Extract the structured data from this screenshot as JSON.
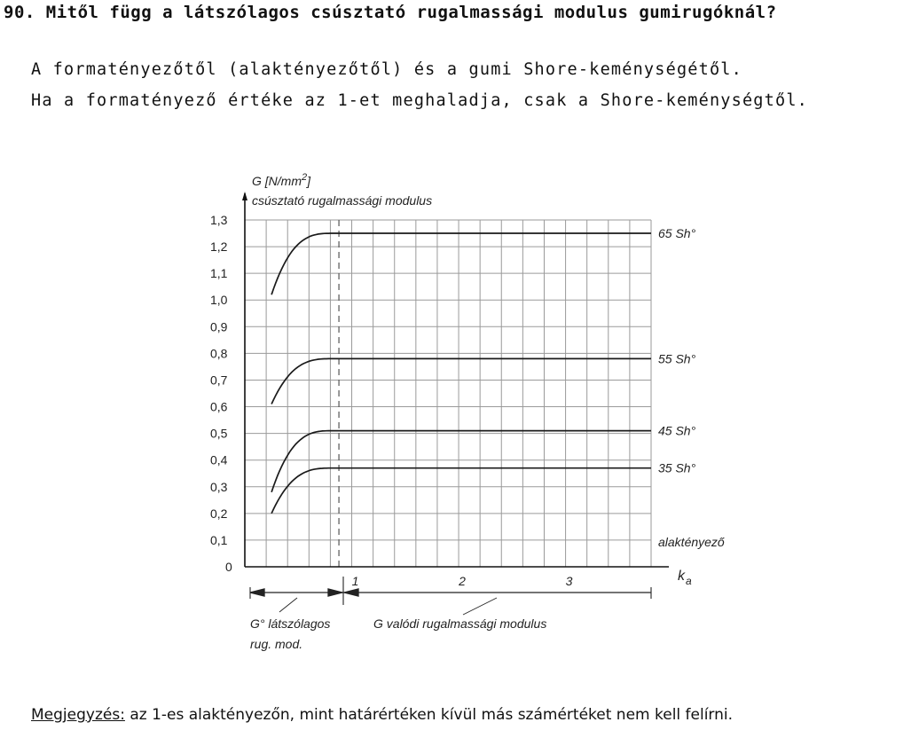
{
  "question": "90. Mitől függ a látszólagos csúsztató rugalmassági modulus gumirugóknál?",
  "answer": {
    "line1": "A formatényezőtől (alaktényezőtől) és a gumi Shore-keménységétől.",
    "line2": "Ha a formatényező értéke az 1-et meghaladja, csak a Shore-keménységtől."
  },
  "note": {
    "label": "Megjegyzés:",
    "text": " az 1-es alaktényezőn, mint határértéken kívül más számértéket nem kell felírni."
  },
  "chart_data": {
    "type": "line",
    "ylabel_unit": "G [N/mm",
    "ylabel_unit_sup": "2",
    "ylabel_unit_close": "]",
    "ylabel": "csúsztató rugalmassági modulus",
    "xlabel": "alaktényező",
    "xlabel_symbol": "k",
    "xlabel_symbol_sub": "a",
    "ylim": [
      0,
      1.3
    ],
    "xlim": [
      0,
      3.8
    ],
    "y_ticks": [
      "0",
      "0,1",
      "0,2",
      "0,3",
      "0,4",
      "0,5",
      "0,6",
      "0,7",
      "0,8",
      "0,9",
      "1,0",
      "1,1",
      "1,2",
      "1,3"
    ],
    "x_ticks": [
      {
        "value": 1,
        "label": "1"
      },
      {
        "value": 2,
        "label": "2"
      },
      {
        "value": 3,
        "label": "3"
      }
    ],
    "grid": true,
    "series": [
      {
        "name": "65 Sh°",
        "plateau": 1.25,
        "start": 1.02
      },
      {
        "name": "55 Sh°",
        "plateau": 0.78,
        "start": 0.61
      },
      {
        "name": "45 Sh°",
        "plateau": 0.51,
        "start": 0.28
      },
      {
        "name": "35 Sh°",
        "plateau": 0.37,
        "start": 0.2
      }
    ],
    "region_left": {
      "label_line1": "G° látszólagos",
      "label_line2": "rug. mod."
    },
    "region_right": {
      "label": "G valódi rugalmassági modulus"
    }
  }
}
